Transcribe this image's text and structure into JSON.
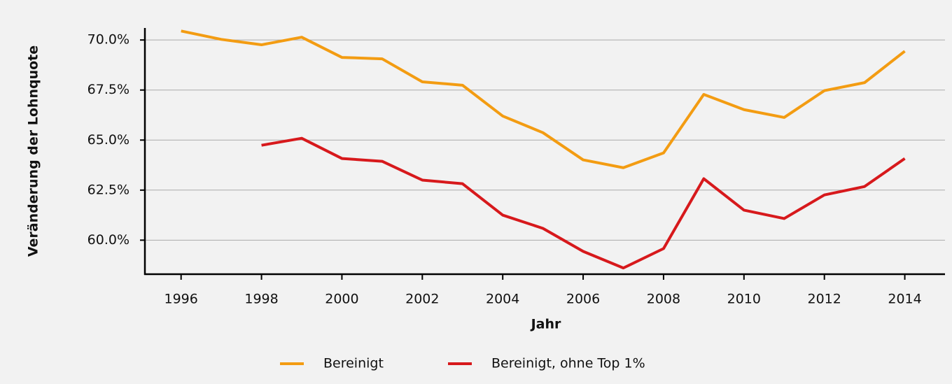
{
  "chart_data": {
    "type": "line",
    "x_label": "Jahr",
    "y_label": "Veränderung der Lohnquote",
    "x": [
      1996,
      1997,
      1998,
      1999,
      2000,
      2001,
      2002,
      2003,
      2004,
      2005,
      2006,
      2007,
      2008,
      2009,
      2010,
      2011,
      2012,
      2013,
      2014
    ],
    "series": [
      {
        "name": "Bereinigt",
        "color": "#f39c12",
        "values": [
          70.45,
          70.03,
          69.76,
          70.14,
          69.13,
          69.06,
          67.91,
          67.74,
          66.2,
          65.37,
          64.01,
          63.62,
          64.36,
          67.28,
          66.52,
          66.13,
          67.47,
          67.87,
          69.44
        ]
      },
      {
        "name": "Bereinigt, ohne Top 1%",
        "color": "#d7191c",
        "values": [
          null,
          null,
          64.74,
          65.09,
          64.08,
          63.94,
          63.0,
          62.82,
          61.25,
          60.59,
          59.44,
          58.61,
          59.58,
          63.07,
          61.5,
          61.08,
          62.26,
          62.68,
          64.08
        ]
      }
    ],
    "xlim": [
      1995.1,
      2015
    ],
    "xticks": [
      1996,
      1998,
      2000,
      2002,
      2004,
      2006,
      2008,
      2010,
      2012,
      2014
    ],
    "ylim": [
      58.3,
      70.6
    ],
    "yticks": [
      {
        "value": 60,
        "label": "60.0%"
      },
      {
        "value": 62.5,
        "label": "62.5%"
      },
      {
        "value": 65,
        "label": "65.0%"
      },
      {
        "value": 67.5,
        "label": "67.5%"
      },
      {
        "value": 70,
        "label": "70.0%"
      }
    ],
    "grid": true,
    "legend": "bottom"
  }
}
